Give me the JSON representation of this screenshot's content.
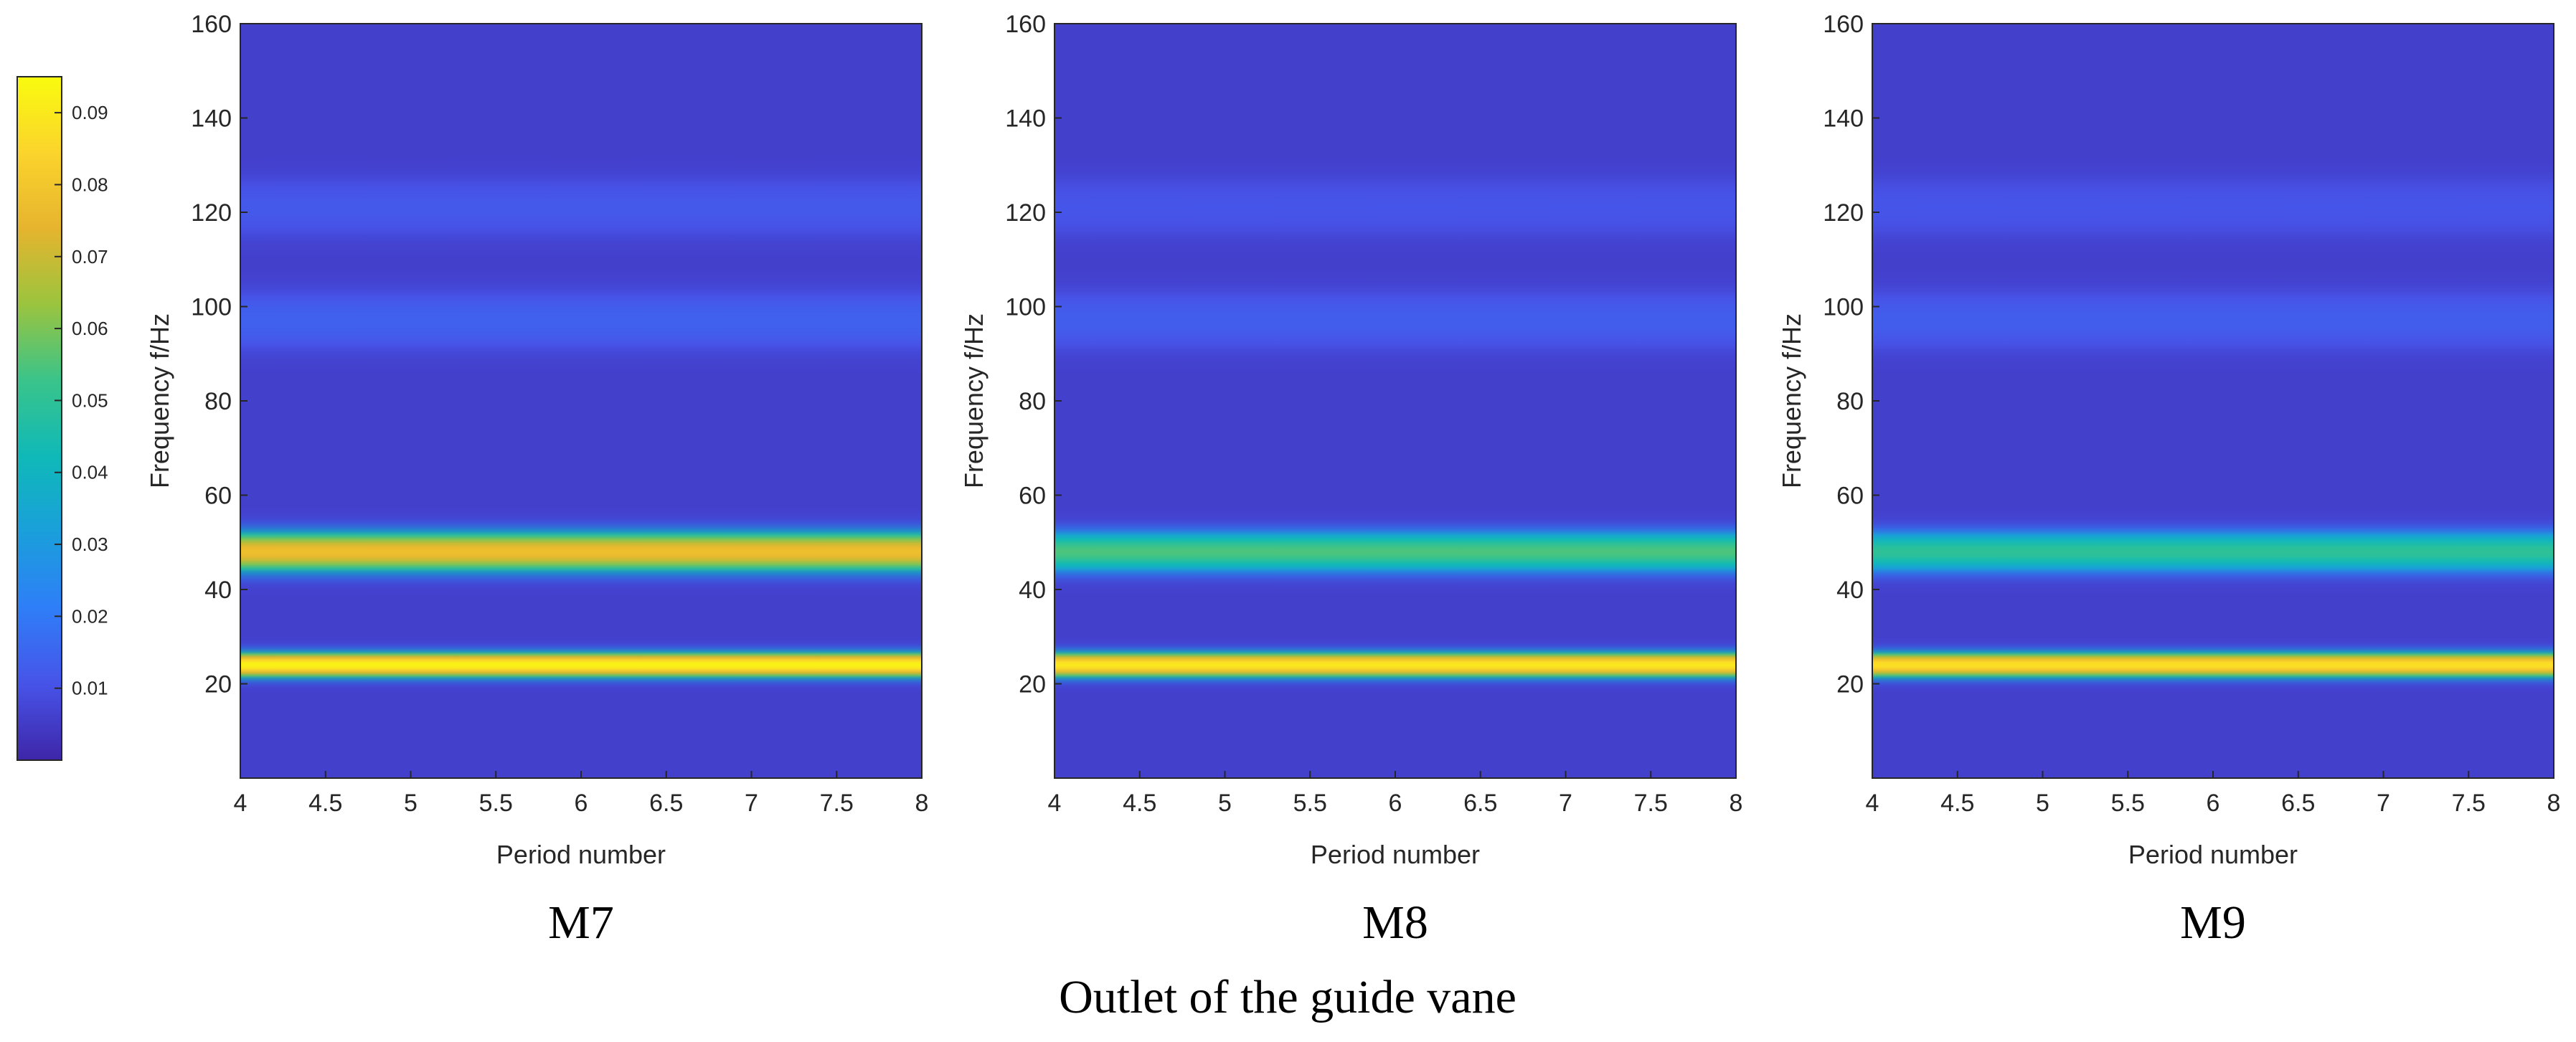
{
  "caption": "Outlet of the guide vane",
  "colorbar": {
    "range": [
      0,
      0.095
    ],
    "ticks": [
      0.01,
      0.02,
      0.03,
      0.04,
      0.05,
      0.06,
      0.07,
      0.08,
      0.09
    ],
    "tick_labels": [
      "0.01",
      "0.02",
      "0.03",
      "0.04",
      "0.05",
      "0.06",
      "0.07",
      "0.08",
      "0.09"
    ],
    "colormap": "parula",
    "colormap_stops": [
      "#3e26a8",
      "#4753e8",
      "#2f7ef8",
      "#1a9fdb",
      "#0fb9b8",
      "#3ac48a",
      "#9bc43e",
      "#e6b42e",
      "#fbd42c",
      "#f9fb0e"
    ]
  },
  "chart_data": [
    {
      "type": "heatmap",
      "panel_label": "M7",
      "xlabel": "Period number",
      "ylabel": "Frequency f/Hz",
      "xlim": [
        4,
        8
      ],
      "ylim": [
        0,
        160
      ],
      "xticks": [
        4,
        4.5,
        5,
        5.5,
        6,
        6.5,
        7,
        7.5,
        8
      ],
      "xtick_labels": [
        "4",
        "4.5",
        "5",
        "5.5",
        "6",
        "6.5",
        "7",
        "7.5",
        "8"
      ],
      "yticks": [
        20,
        40,
        60,
        80,
        100,
        120,
        140,
        160
      ],
      "ytick_labels": [
        "20",
        "40",
        "60",
        "80",
        "100",
        "120",
        "140",
        "160"
      ],
      "background_level": 0.006,
      "bands": [
        {
          "frequency": 24,
          "peak": 0.093,
          "width": 2.2
        },
        {
          "frequency": 48,
          "peak": 0.078,
          "width": 3.5
        },
        {
          "frequency": 97,
          "peak": 0.014,
          "width": 5
        },
        {
          "frequency": 121,
          "peak": 0.012,
          "width": 5
        }
      ]
    },
    {
      "type": "heatmap",
      "panel_label": "M8",
      "xlabel": "Period number",
      "ylabel": "Frequency f/Hz",
      "xlim": [
        4,
        8
      ],
      "ylim": [
        0,
        160
      ],
      "xticks": [
        4,
        4.5,
        5,
        5.5,
        6,
        6.5,
        7,
        7.5,
        8
      ],
      "xtick_labels": [
        "4",
        "4.5",
        "5",
        "5.5",
        "6",
        "6.5",
        "7",
        "7.5",
        "8"
      ],
      "yticks": [
        20,
        40,
        60,
        80,
        100,
        120,
        140,
        160
      ],
      "ytick_labels": [
        "20",
        "40",
        "60",
        "80",
        "100",
        "120",
        "140",
        "160"
      ],
      "background_level": 0.006,
      "bands": [
        {
          "frequency": 24,
          "peak": 0.09,
          "width": 2.2
        },
        {
          "frequency": 48,
          "peak": 0.055,
          "width": 3.5
        },
        {
          "frequency": 97,
          "peak": 0.013,
          "width": 5
        },
        {
          "frequency": 121,
          "peak": 0.011,
          "width": 5
        }
      ]
    },
    {
      "type": "heatmap",
      "panel_label": "M9",
      "xlabel": "Period number",
      "ylabel": "Frequency f/Hz",
      "xlim": [
        4,
        8
      ],
      "ylim": [
        0,
        160
      ],
      "xticks": [
        4,
        4.5,
        5,
        5.5,
        6,
        6.5,
        7,
        7.5,
        8
      ],
      "xtick_labels": [
        "4",
        "4.5",
        "5",
        "5.5",
        "6",
        "6.5",
        "7",
        "7.5",
        "8"
      ],
      "yticks": [
        20,
        40,
        60,
        80,
        100,
        120,
        140,
        160
      ],
      "ytick_labels": [
        "20",
        "40",
        "60",
        "80",
        "100",
        "120",
        "140",
        "160"
      ],
      "background_level": 0.006,
      "bands": [
        {
          "frequency": 24,
          "peak": 0.088,
          "width": 2.2
        },
        {
          "frequency": 48,
          "peak": 0.05,
          "width": 3.5
        },
        {
          "frequency": 97,
          "peak": 0.013,
          "width": 5
        },
        {
          "frequency": 121,
          "peak": 0.011,
          "width": 5
        }
      ]
    }
  ]
}
